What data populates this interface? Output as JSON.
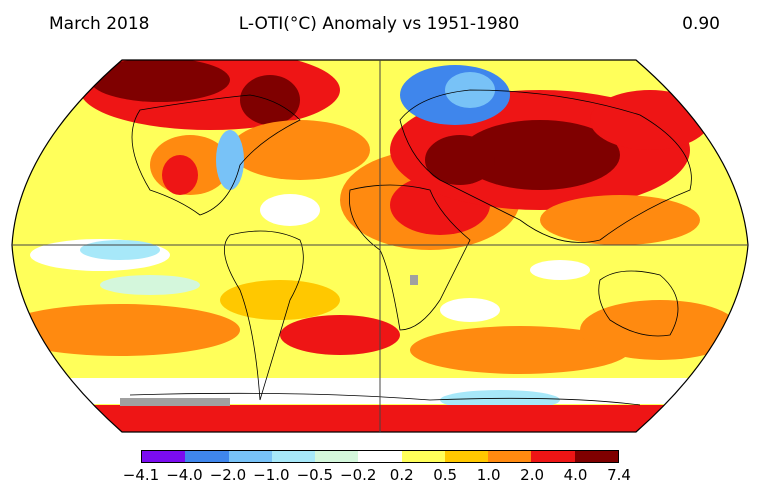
{
  "header": {
    "date_label": "March 2018",
    "title": "L-OTI(°C) Anomaly vs 1951-1980",
    "global_mean": "0.90"
  },
  "legend": {
    "colors": [
      "#7b0cf0",
      "#3f86ec",
      "#78c2f7",
      "#a7e8f9",
      "#d4f7dc",
      "#ffffff",
      "#ffff5a",
      "#ffc800",
      "#ff8a10",
      "#ee1515",
      "#7f0000"
    ],
    "ticks": [
      "−4.1",
      "−4.0",
      "−2.0",
      "−1.0",
      "−0.5",
      "−0.2",
      "0.2",
      "0.5",
      "1.0",
      "2.0",
      "4.0",
      "7.4"
    ]
  },
  "map": {
    "projection": "Robinson",
    "background_color": "#ffff5a",
    "coastline_color": "#000000"
  }
}
